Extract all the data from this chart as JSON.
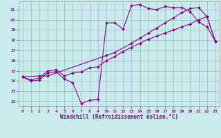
{
  "xlabel": "Windchill (Refroidissement éolien,°C)",
  "bg_color": "#c8ecec",
  "line_color": "#880088",
  "grid_color": "#a0a0c0",
  "xlim": [
    -0.5,
    23.5
  ],
  "ylim": [
    11.5,
    21.8
  ],
  "yticks": [
    12,
    13,
    14,
    15,
    16,
    17,
    18,
    19,
    20,
    21
  ],
  "xticks": [
    0,
    1,
    2,
    3,
    4,
    5,
    6,
    7,
    8,
    9,
    10,
    11,
    12,
    13,
    14,
    15,
    16,
    17,
    18,
    19,
    20,
    21,
    22,
    23
  ],
  "line1_x": [
    0,
    1,
    2,
    3,
    4,
    5,
    6,
    7,
    8,
    9,
    10,
    11,
    12,
    13,
    14,
    15,
    16,
    17,
    18,
    19,
    20,
    21,
    22,
    23
  ],
  "line1_y": [
    14.4,
    14.0,
    14.1,
    14.8,
    14.9,
    14.2,
    13.8,
    11.8,
    12.1,
    12.2,
    19.7,
    19.7,
    19.1,
    21.4,
    21.5,
    21.1,
    21.0,
    21.3,
    21.2,
    21.2,
    20.8,
    19.8,
    19.3,
    17.9
  ],
  "line2_x": [
    0,
    1,
    2,
    3,
    4,
    5,
    6,
    7,
    8,
    9,
    10,
    11,
    12,
    13,
    14,
    15,
    16,
    17,
    18,
    19,
    20,
    21,
    22,
    23
  ],
  "line2_y": [
    14.4,
    14.1,
    14.3,
    15.0,
    15.1,
    14.5,
    14.8,
    14.9,
    15.3,
    15.4,
    16.0,
    16.4,
    16.9,
    17.3,
    17.7,
    18.1,
    18.4,
    18.7,
    19.0,
    19.3,
    19.6,
    20.0,
    20.3,
    17.9
  ],
  "line3_x": [
    0,
    2,
    3,
    10,
    11,
    13,
    14,
    15,
    16,
    17,
    18,
    19,
    20,
    21,
    22,
    23
  ],
  "line3_y": [
    14.4,
    14.5,
    14.5,
    16.5,
    16.8,
    17.7,
    18.2,
    18.7,
    19.2,
    19.7,
    20.2,
    20.7,
    21.1,
    21.2,
    20.3,
    17.9
  ]
}
